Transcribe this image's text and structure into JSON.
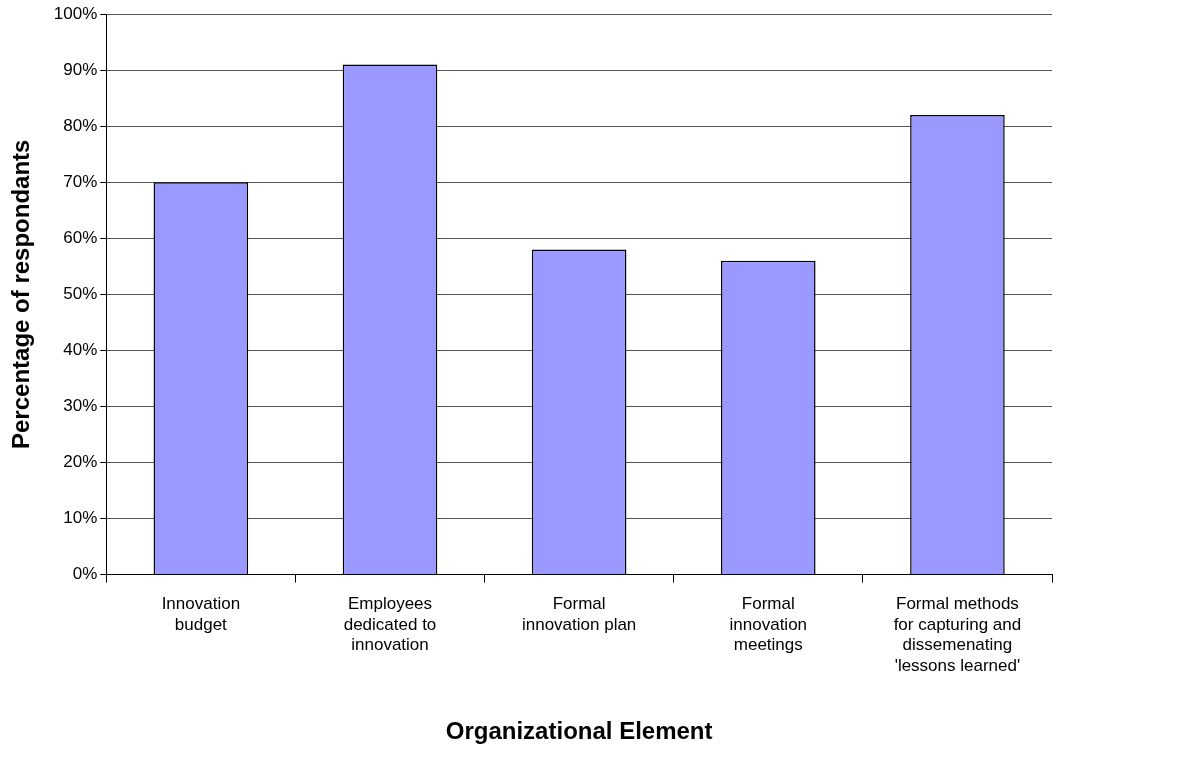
{
  "chart_data": {
    "type": "bar",
    "xlabel": "Organizational Element",
    "ylabel": "Percentage of respondants",
    "categories": [
      "Innovation\nbudget",
      "Employees\ndedicated to\ninnovation",
      "Formal\ninnovation plan",
      "Formal\ninnovation\nmeetings",
      "Formal methods\nfor capturing and\ndissemenating\n'lessons learned'"
    ],
    "values": [
      70,
      91,
      58,
      56,
      82
    ],
    "color": "#9999ff",
    "ylim": [
      0,
      100
    ],
    "yticks": [
      {
        "value": 0,
        "label": "0%"
      },
      {
        "value": 10,
        "label": "10%"
      },
      {
        "value": 20,
        "label": "20%"
      },
      {
        "value": 30,
        "label": "30%"
      },
      {
        "value": 40,
        "label": "40%"
      },
      {
        "value": 50,
        "label": "50%"
      },
      {
        "value": 60,
        "label": "60%"
      },
      {
        "value": 70,
        "label": "70%"
      },
      {
        "value": 80,
        "label": "80%"
      },
      {
        "value": 90,
        "label": "90%"
      },
      {
        "value": 100,
        "label": "100%"
      }
    ],
    "grid": "y",
    "legend": false
  }
}
